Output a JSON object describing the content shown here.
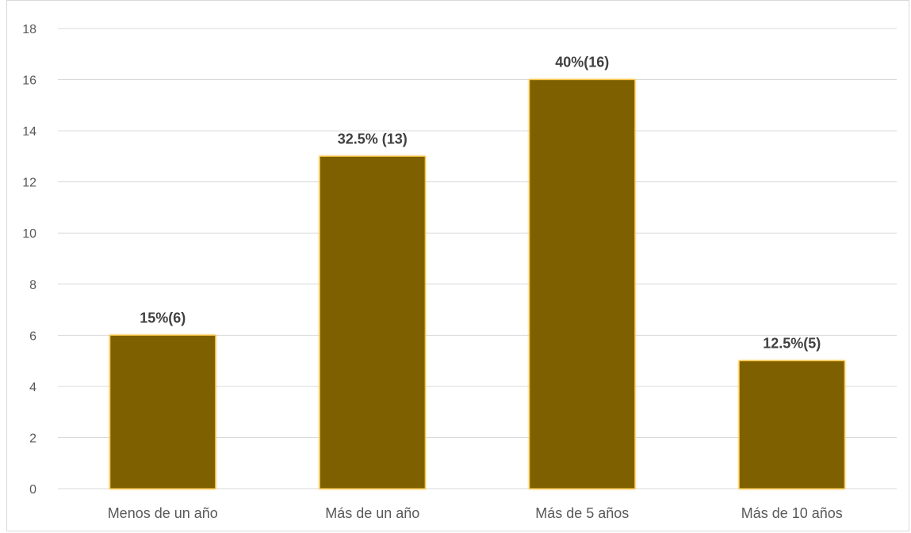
{
  "chart_data": {
    "type": "bar",
    "categories": [
      "Menos de un año",
      "Más de un año",
      "Más de 5 años",
      "Más de 10 años"
    ],
    "values": [
      6,
      13,
      16,
      5
    ],
    "data_labels": [
      "15%(6)",
      "32.5% (13)",
      "40%(16)",
      "12.5%(5)"
    ],
    "title": "",
    "xlabel": "",
    "ylabel": "",
    "ylim": [
      0,
      18
    ],
    "yticks": [
      0,
      2,
      4,
      6,
      8,
      10,
      12,
      14,
      16,
      18
    ],
    "grid": true,
    "legend": "none",
    "colors": {
      "bar_fill": "#7f6000",
      "bar_edge": "#f5c242",
      "grid": "#d9d9d9"
    }
  }
}
